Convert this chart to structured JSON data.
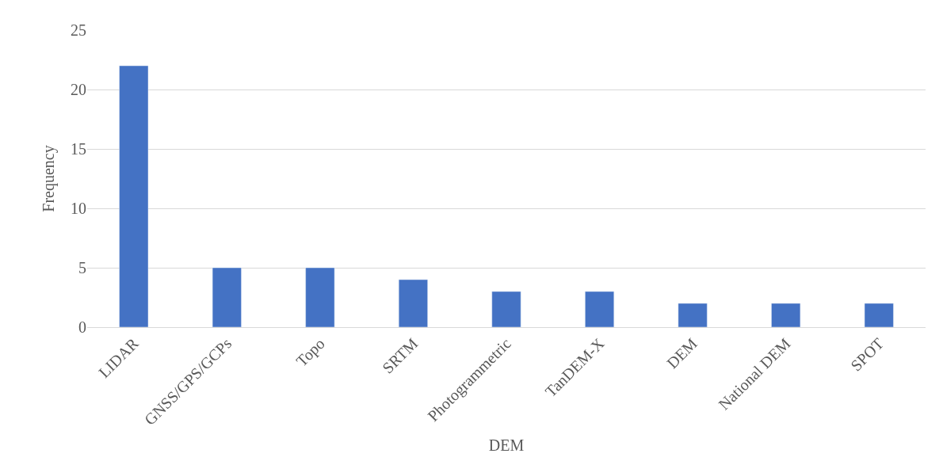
{
  "chart_data": {
    "type": "bar",
    "xlabel": "DEM",
    "ylabel": "Frequency",
    "categories": [
      "LIDAR",
      "GNSS/GPS/GCPs",
      "Topo",
      "SRTM",
      "Photogrammetric",
      "TanDEM-X",
      "DEM",
      "National DEM",
      "SPOT"
    ],
    "values": [
      22,
      5,
      5,
      4,
      3,
      3,
      2,
      2,
      2
    ],
    "color": "#4472c4",
    "ylim": [
      0,
      25
    ],
    "yticks": [
      0,
      5,
      10,
      15,
      20,
      25
    ],
    "grid": "y"
  }
}
